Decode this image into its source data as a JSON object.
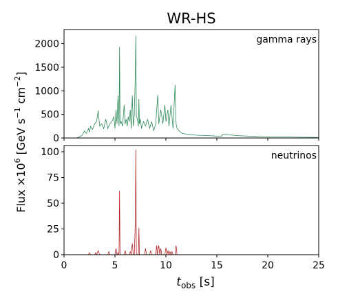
{
  "chart_data": {
    "type": "line",
    "title": "WR-HS",
    "ylabel": {
      "pre": "Flux ×10",
      "sup1": "6",
      "mid": " [GeV s",
      "sup2": "−1",
      "mid2": " cm",
      "sup3": "−2",
      "post": "]"
    },
    "xlabel": {
      "main": "t",
      "sub": "obs",
      "post": " [s]"
    },
    "xlim": [
      0,
      25
    ],
    "xticks": [
      "0",
      "5",
      "10",
      "15",
      "20",
      "25"
    ],
    "panels": [
      {
        "name": "gamma rays",
        "color": "#2e8b57",
        "ylim": [
          0,
          2300
        ],
        "yticks": [
          "0",
          "500",
          "1000",
          "1500",
          "2000"
        ],
        "ytick_values": [
          0,
          500,
          1000,
          1500,
          2000
        ],
        "x": [
          1.2,
          1.5,
          1.8,
          2.0,
          2.2,
          2.4,
          2.5,
          2.6,
          2.8,
          3.0,
          3.2,
          3.35,
          3.5,
          3.7,
          3.9,
          4.1,
          4.3,
          4.5,
          4.7,
          4.9,
          5.0,
          5.1,
          5.2,
          5.3,
          5.4,
          5.45,
          5.5,
          5.6,
          5.75,
          5.9,
          6.0,
          6.1,
          6.2,
          6.3,
          6.4,
          6.5,
          6.6,
          6.7,
          6.8,
          6.9,
          7.0,
          7.05,
          7.1,
          7.2,
          7.3,
          7.35,
          7.4,
          7.5,
          7.6,
          7.8,
          7.9,
          8.0,
          8.2,
          8.4,
          8.6,
          8.8,
          9.0,
          9.2,
          9.3,
          9.5,
          9.7,
          9.9,
          10.0,
          10.2,
          10.3,
          10.5,
          10.7,
          10.9,
          11.0,
          11.1,
          11.3,
          11.6,
          12.0,
          12.5,
          13.0,
          14.0,
          15.0,
          15.5,
          15.55,
          16.0,
          17.0,
          18.0,
          18.2,
          19.0,
          20.0,
          22.0,
          24.0,
          25.0
        ],
        "y": [
          0,
          20,
          60,
          150,
          100,
          200,
          120,
          250,
          180,
          300,
          350,
          580,
          250,
          300,
          200,
          400,
          200,
          300,
          350,
          450,
          200,
          600,
          300,
          900,
          250,
          1930,
          300,
          350,
          250,
          700,
          300,
          400,
          250,
          450,
          350,
          600,
          200,
          900,
          250,
          500,
          1400,
          2170,
          450,
          400,
          250,
          830,
          300,
          400,
          200,
          350,
          300,
          250,
          400,
          200,
          350,
          150,
          300,
          910,
          300,
          600,
          300,
          700,
          350,
          600,
          250,
          700,
          200,
          1130,
          300,
          200,
          150,
          100,
          80,
          70,
          60,
          50,
          40,
          40,
          80,
          70,
          50,
          40,
          40,
          30,
          25,
          20,
          15,
          10
        ]
      },
      {
        "name": "neutrinos",
        "color": "#b22222",
        "ylim": [
          0,
          106
        ],
        "yticks": [
          "0",
          "25",
          "50",
          "75",
          "100"
        ],
        "ytick_values": [
          0,
          25,
          50,
          75,
          100
        ],
        "x": [
          1.5,
          2.4,
          2.5,
          2.6,
          3.0,
          3.1,
          3.2,
          3.35,
          3.5,
          4.0,
          4.3,
          4.4,
          4.5,
          4.9,
          5.0,
          5.1,
          5.2,
          5.3,
          5.4,
          5.45,
          5.5,
          5.6,
          5.9,
          6.0,
          6.1,
          6.4,
          6.5,
          6.6,
          6.7,
          6.8,
          6.9,
          7.0,
          7.05,
          7.1,
          7.2,
          7.3,
          7.35,
          7.4,
          7.5,
          7.9,
          8.0,
          8.1,
          8.4,
          8.5,
          8.6,
          8.9,
          9.0,
          9.1,
          9.15,
          9.2,
          9.3,
          9.4,
          9.5,
          9.6,
          9.9,
          10.0,
          10.1,
          10.2,
          10.3,
          10.4,
          10.5,
          10.6,
          10.7,
          10.8,
          10.9,
          11.0,
          11.1,
          11.5
        ],
        "y": [
          0,
          0,
          2,
          0,
          0,
          2,
          0,
          4,
          0,
          0,
          0,
          3,
          0,
          0,
          0,
          6,
          0,
          2,
          0,
          62,
          0,
          0,
          0,
          4,
          0,
          0,
          3,
          0,
          11,
          0,
          0,
          32,
          102,
          2,
          0,
          0,
          26,
          0,
          0,
          0,
          6,
          0,
          0,
          4,
          0,
          0,
          1,
          9,
          0,
          3,
          9,
          0,
          6,
          0,
          0,
          7,
          0,
          4,
          0,
          3,
          0,
          3,
          0,
          0,
          0,
          9,
          0,
          0
        ]
      }
    ]
  }
}
